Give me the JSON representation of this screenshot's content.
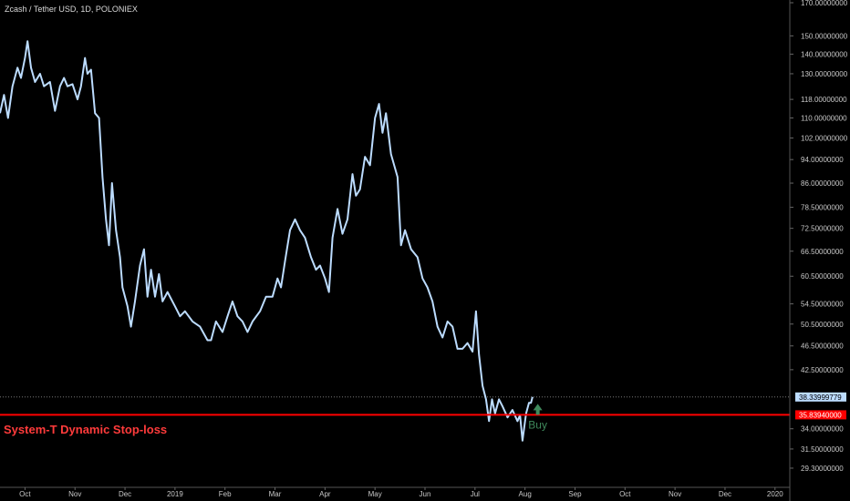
{
  "header": {
    "symbol_title": "Zcash / Tether USD, 1D, POLONIEX"
  },
  "indicator": {
    "stop_label": "System-T Dynamic Stop-loss"
  },
  "colors": {
    "background": "#000000",
    "price_line": "#bcdcff",
    "stop_line": "#ff0000",
    "stop_label": "#ff3b3b",
    "buy_marker": "#3f8a5c",
    "last_price_tag": "#bcdcff"
  },
  "chart_data": {
    "type": "line",
    "title": "Zcash / Tether USD, 1D, POLONIEX",
    "y_scale": "log",
    "ylim": [
      28.5,
      170
    ],
    "y_ticks": [
      {
        "value": 170,
        "label": "170.00000000"
      },
      {
        "value": 150,
        "label": "150.00000000"
      },
      {
        "value": 140,
        "label": "140.00000000"
      },
      {
        "value": 130,
        "label": "130.00000000"
      },
      {
        "value": 118,
        "label": "118.00000000"
      },
      {
        "value": 110,
        "label": "110.00000000"
      },
      {
        "value": 102,
        "label": "102.00000000"
      },
      {
        "value": 94,
        "label": "94.00000000"
      },
      {
        "value": 86,
        "label": "86.00000000"
      },
      {
        "value": 78.5,
        "label": "78.50000000"
      },
      {
        "value": 72.5,
        "label": "72.50000000"
      },
      {
        "value": 66.5,
        "label": "66.50000000"
      },
      {
        "value": 60.5,
        "label": "60.50000000"
      },
      {
        "value": 54.5,
        "label": "54.50000000"
      },
      {
        "value": 50.5,
        "label": "50.50000000"
      },
      {
        "value": 46.5,
        "label": "46.50000000"
      },
      {
        "value": 42.5,
        "label": "42.50000000"
      },
      {
        "value": 34,
        "label": "34.00000000"
      },
      {
        "value": 31.5,
        "label": "31.50000000"
      },
      {
        "value": 29.3,
        "label": "29.30000000"
      }
    ],
    "x_ticks": [
      "Oct",
      "Nov",
      "Dec",
      "2019",
      "Feb",
      "Mar",
      "Apr",
      "May",
      "Jun",
      "Jul",
      "Aug",
      "Sep",
      "Oct",
      "Nov",
      "Dec",
      "2020"
    ],
    "x_month_index_range": [
      -0.5,
      15.15
    ],
    "series": [
      {
        "points": [
          [
            -0.5,
            112
          ],
          [
            -0.42,
            120
          ],
          [
            -0.34,
            110
          ],
          [
            -0.25,
            124
          ],
          [
            -0.15,
            133
          ],
          [
            -0.08,
            128
          ],
          [
            0.0,
            138
          ],
          [
            0.05,
            147
          ],
          [
            0.12,
            133
          ],
          [
            0.2,
            126
          ],
          [
            0.3,
            130
          ],
          [
            0.38,
            124
          ],
          [
            0.5,
            126
          ],
          [
            0.6,
            113
          ],
          [
            0.7,
            124
          ],
          [
            0.78,
            128
          ],
          [
            0.85,
            124
          ],
          [
            0.95,
            125
          ],
          [
            1.05,
            118
          ],
          [
            1.12,
            124
          ],
          [
            1.2,
            138
          ],
          [
            1.25,
            130
          ],
          [
            1.32,
            132
          ],
          [
            1.4,
            112
          ],
          [
            1.48,
            110
          ],
          [
            1.55,
            88
          ],
          [
            1.62,
            75
          ],
          [
            1.68,
            68
          ],
          [
            1.74,
            86
          ],
          [
            1.82,
            72
          ],
          [
            1.9,
            65
          ],
          [
            1.95,
            58
          ],
          [
            2.05,
            54
          ],
          [
            2.12,
            50
          ],
          [
            2.2,
            55
          ],
          [
            2.3,
            63
          ],
          [
            2.38,
            67
          ],
          [
            2.45,
            56
          ],
          [
            2.52,
            62
          ],
          [
            2.6,
            56
          ],
          [
            2.68,
            61
          ],
          [
            2.75,
            55
          ],
          [
            2.85,
            57
          ],
          [
            3.0,
            54
          ],
          [
            3.1,
            52
          ],
          [
            3.2,
            53
          ],
          [
            3.35,
            51
          ],
          [
            3.5,
            50
          ],
          [
            3.65,
            47.5
          ],
          [
            3.72,
            47.5
          ],
          [
            3.82,
            51
          ],
          [
            3.95,
            49
          ],
          [
            4.05,
            52
          ],
          [
            4.15,
            55
          ],
          [
            4.25,
            52
          ],
          [
            4.35,
            51
          ],
          [
            4.45,
            49
          ],
          [
            4.55,
            51
          ],
          [
            4.7,
            53
          ],
          [
            4.82,
            56
          ],
          [
            4.95,
            56
          ],
          [
            5.05,
            60
          ],
          [
            5.12,
            58
          ],
          [
            5.2,
            64
          ],
          [
            5.3,
            72
          ],
          [
            5.4,
            75
          ],
          [
            5.5,
            72
          ],
          [
            5.6,
            70
          ],
          [
            5.72,
            65
          ],
          [
            5.82,
            62
          ],
          [
            5.9,
            63
          ],
          [
            6.0,
            60
          ],
          [
            6.08,
            57
          ],
          [
            6.15,
            70
          ],
          [
            6.25,
            78
          ],
          [
            6.35,
            71
          ],
          [
            6.45,
            75
          ],
          [
            6.55,
            89
          ],
          [
            6.62,
            82
          ],
          [
            6.7,
            84
          ],
          [
            6.8,
            95
          ],
          [
            6.9,
            92
          ],
          [
            7.0,
            110
          ],
          [
            7.08,
            116
          ],
          [
            7.15,
            104
          ],
          [
            7.22,
            112
          ],
          [
            7.32,
            96
          ],
          [
            7.45,
            88
          ],
          [
            7.52,
            68
          ],
          [
            7.6,
            72
          ],
          [
            7.72,
            67
          ],
          [
            7.85,
            65
          ],
          [
            7.95,
            60
          ],
          [
            8.05,
            58
          ],
          [
            8.15,
            55
          ],
          [
            8.25,
            50
          ],
          [
            8.35,
            48
          ],
          [
            8.45,
            51
          ],
          [
            8.55,
            50
          ],
          [
            8.65,
            46
          ],
          [
            8.75,
            46
          ],
          [
            8.85,
            47
          ],
          [
            8.95,
            45.5
          ],
          [
            9.02,
            53
          ],
          [
            9.08,
            45
          ],
          [
            9.15,
            40
          ],
          [
            9.22,
            38
          ],
          [
            9.28,
            35
          ],
          [
            9.34,
            38
          ],
          [
            9.4,
            36
          ],
          [
            9.48,
            38
          ],
          [
            9.55,
            37
          ],
          [
            9.65,
            35.5
          ],
          [
            9.75,
            36.5
          ],
          [
            9.85,
            35
          ],
          [
            9.9,
            35.8
          ],
          [
            9.95,
            32.5
          ],
          [
            10.02,
            36
          ],
          [
            10.08,
            37.5
          ],
          [
            10.12,
            37.5
          ],
          [
            10.15,
            38.34
          ]
        ]
      }
    ],
    "last_price": {
      "value": 38.33999779,
      "label": "38.33999779"
    },
    "stop_loss": {
      "value": 35.8394,
      "label": "35.83940000"
    },
    "signal": {
      "label": "Buy",
      "month_index": 10.0,
      "value": 35.8394
    },
    "grid": false,
    "legend": "none"
  }
}
